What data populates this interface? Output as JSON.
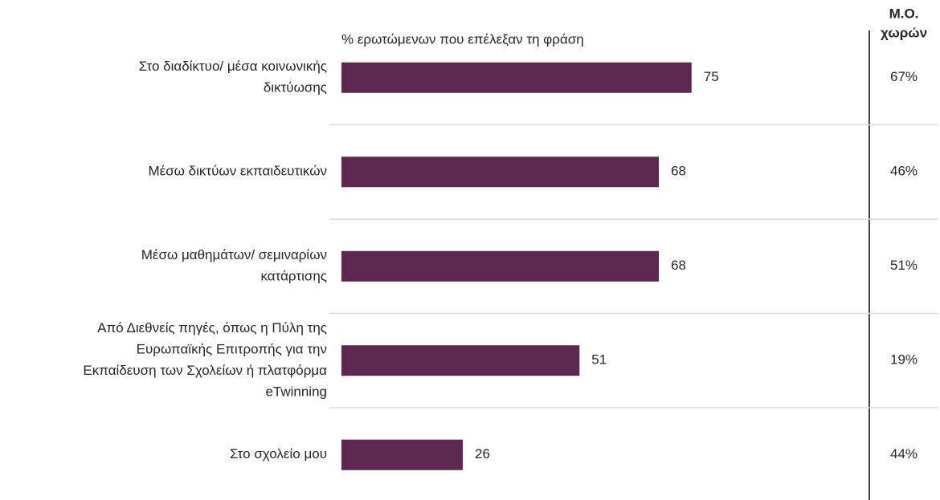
{
  "chart_data": {
    "type": "bar",
    "orientation": "horizontal",
    "subtitle": "% ερωτώμενων που επέλεξαν τη φράση",
    "categories": [
      [
        "Στο διαδίκτυο/ μέσα κοινωνικής",
        "δικτύωσης"
      ],
      [
        "Μέσω δικτύων εκπαιδευτικών"
      ],
      [
        "Μέσω μαθημάτων/ σεμιναρίων",
        "κατάρτισης"
      ],
      [
        "Από Διεθνείς πηγές, όπως η  Πύλη της",
        "Ευρωπαϊκής Επιτροπής για την",
        "Εκπαίδευση των Σχολείων ή πλατφόρμα",
        "eTwinning"
      ],
      [
        "Στο σχολείο μου"
      ]
    ],
    "values": [
      75,
      68,
      68,
      51,
      26
    ],
    "color": "#5e2750",
    "xlim": [
      0,
      100
    ],
    "side_column": {
      "title": [
        "Μ.Ο.",
        "χωρών"
      ],
      "values": [
        "67%",
        "46%",
        "51%",
        "19%",
        "44%"
      ]
    }
  }
}
